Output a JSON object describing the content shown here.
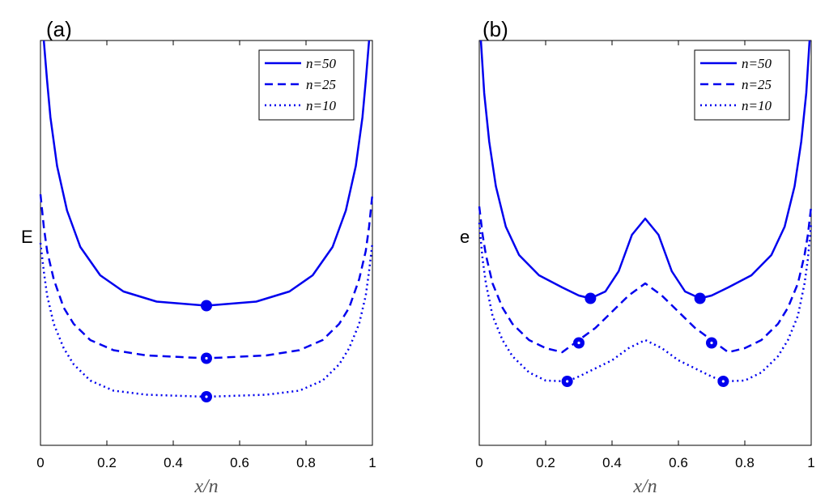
{
  "chart_data": [
    {
      "type": "line",
      "panel_label": "(a)",
      "xlabel": "x/n",
      "ylabel": "E",
      "xlim": [
        0,
        1
      ],
      "ylim": [
        0,
        1
      ],
      "xticks": [
        "0",
        "0.2",
        "0.4",
        "0.6",
        "0.8",
        "1"
      ],
      "legend_position": "top-right",
      "series": [
        {
          "name": "n=50",
          "style": "solid",
          "x": [
            0.01,
            0.02,
            0.03,
            0.05,
            0.08,
            0.12,
            0.18,
            0.25,
            0.35,
            0.5,
            0.65,
            0.75,
            0.82,
            0.88,
            0.92,
            0.95,
            0.97,
            0.98,
            0.99
          ],
          "y": [
            1.0,
            0.9,
            0.81,
            0.69,
            0.58,
            0.49,
            0.42,
            0.38,
            0.355,
            0.345,
            0.355,
            0.38,
            0.42,
            0.49,
            0.58,
            0.69,
            0.81,
            0.9,
            1.0
          ],
          "marker_x": [
            0.5
          ],
          "marker_y": [
            0.345
          ]
        },
        {
          "name": "n=25",
          "style": "dashed",
          "x": [
            0.0,
            0.01,
            0.02,
            0.04,
            0.07,
            0.1,
            0.15,
            0.22,
            0.32,
            0.5,
            0.68,
            0.78,
            0.85,
            0.9,
            0.93,
            0.96,
            0.98,
            0.99,
            1.0
          ],
          "y": [
            0.62,
            0.54,
            0.48,
            0.41,
            0.34,
            0.3,
            0.26,
            0.235,
            0.222,
            0.215,
            0.222,
            0.235,
            0.26,
            0.3,
            0.34,
            0.41,
            0.48,
            0.54,
            0.62
          ],
          "marker_x": [
            0.5
          ],
          "marker_y": [
            0.215
          ]
        },
        {
          "name": "n=10",
          "style": "dotted",
          "x": [
            0.0,
            0.01,
            0.02,
            0.04,
            0.07,
            0.1,
            0.15,
            0.22,
            0.32,
            0.5,
            0.68,
            0.78,
            0.85,
            0.9,
            0.93,
            0.96,
            0.98,
            0.99,
            1.0
          ],
          "y": [
            0.5,
            0.43,
            0.37,
            0.3,
            0.24,
            0.2,
            0.16,
            0.135,
            0.125,
            0.12,
            0.125,
            0.135,
            0.16,
            0.2,
            0.24,
            0.3,
            0.37,
            0.43,
            0.5
          ],
          "marker_x": [
            0.5
          ],
          "marker_y": [
            0.12
          ]
        }
      ],
      "legend": [
        "n=50",
        "n=25",
        "n=10"
      ]
    },
    {
      "type": "line",
      "panel_label": "(b)",
      "xlabel": "x/n",
      "ylabel": "e",
      "xlim": [
        0,
        1
      ],
      "ylim": [
        0,
        1
      ],
      "xticks": [
        "0",
        "0.2",
        "0.4",
        "0.6",
        "0.8",
        "1"
      ],
      "legend_position": "top-right",
      "series": [
        {
          "name": "n=50",
          "style": "solid",
          "x": [
            0.005,
            0.015,
            0.03,
            0.05,
            0.08,
            0.12,
            0.18,
            0.25,
            0.3,
            0.335,
            0.38,
            0.42,
            0.46,
            0.5,
            0.54,
            0.58,
            0.62,
            0.665,
            0.7,
            0.75,
            0.82,
            0.88,
            0.92,
            0.95,
            0.97,
            0.985,
            0.995
          ],
          "y": [
            1.0,
            0.87,
            0.75,
            0.64,
            0.54,
            0.47,
            0.42,
            0.39,
            0.37,
            0.363,
            0.38,
            0.43,
            0.52,
            0.56,
            0.52,
            0.43,
            0.38,
            0.363,
            0.37,
            0.39,
            0.42,
            0.47,
            0.54,
            0.64,
            0.75,
            0.87,
            1.0
          ],
          "marker_x": [
            0.335,
            0.665
          ],
          "marker_y": [
            0.363,
            0.363
          ]
        },
        {
          "name": "n=25",
          "style": "dashed",
          "x": [
            0.0,
            0.01,
            0.02,
            0.04,
            0.07,
            0.1,
            0.15,
            0.2,
            0.25,
            0.3,
            0.35,
            0.4,
            0.45,
            0.5,
            0.55,
            0.6,
            0.65,
            0.7,
            0.75,
            0.8,
            0.85,
            0.9,
            0.93,
            0.96,
            0.98,
            0.99,
            1.0
          ],
          "y": [
            0.59,
            0.52,
            0.47,
            0.4,
            0.34,
            0.3,
            0.26,
            0.24,
            0.23,
            0.26,
            0.29,
            0.33,
            0.37,
            0.4,
            0.37,
            0.33,
            0.29,
            0.26,
            0.23,
            0.24,
            0.26,
            0.3,
            0.34,
            0.4,
            0.47,
            0.52,
            0.59
          ],
          "marker_x": [
            0.3,
            0.7
          ],
          "marker_y": [
            0.253,
            0.253
          ]
        },
        {
          "name": "n=10",
          "style": "dotted",
          "x": [
            0.0,
            0.01,
            0.02,
            0.04,
            0.07,
            0.1,
            0.15,
            0.2,
            0.265,
            0.3,
            0.35,
            0.4,
            0.45,
            0.5,
            0.55,
            0.6,
            0.65,
            0.7,
            0.735,
            0.8,
            0.85,
            0.9,
            0.93,
            0.96,
            0.98,
            0.99,
            1.0
          ],
          "y": [
            0.55,
            0.46,
            0.4,
            0.32,
            0.26,
            0.22,
            0.18,
            0.16,
            0.158,
            0.17,
            0.19,
            0.21,
            0.24,
            0.26,
            0.24,
            0.21,
            0.19,
            0.17,
            0.158,
            0.16,
            0.18,
            0.22,
            0.26,
            0.32,
            0.4,
            0.46,
            0.55
          ],
          "marker_x": [
            0.265,
            0.735
          ],
          "marker_y": [
            0.158,
            0.158
          ]
        }
      ],
      "legend": [
        "n=50",
        "n=25",
        "n=10"
      ]
    }
  ],
  "colors": {
    "line": "#0000ee",
    "axis": "#000000"
  }
}
